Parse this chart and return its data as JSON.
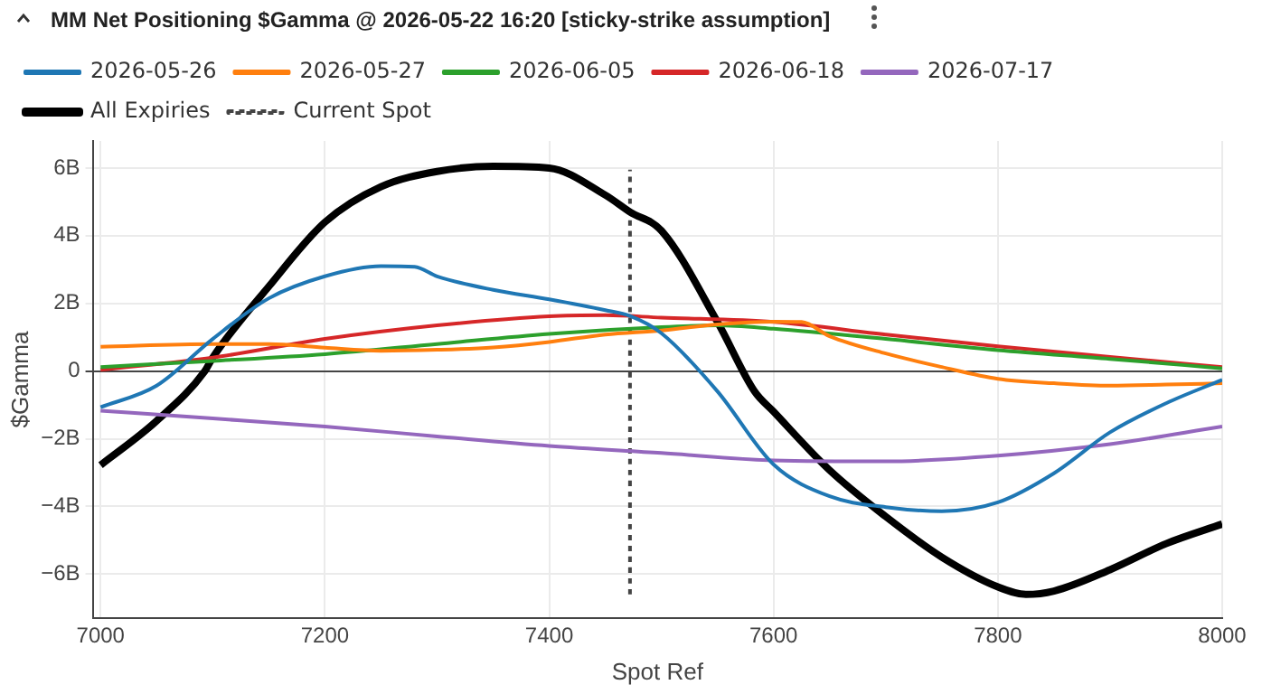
{
  "chart_data": {
    "type": "line",
    "title": "MM Net Positioning $Gamma @ 2026-05-22 16:20 [sticky-strike assumption]",
    "xlabel": "Spot Ref",
    "ylabel": "$Gamma",
    "xlim": [
      6993,
      8000
    ],
    "xticks": [
      7000,
      7200,
      7400,
      7600,
      7800,
      8000
    ],
    "ylim": [
      -7.3,
      6.8
    ],
    "yticks": [
      {
        "value": -6,
        "label": "−6B"
      },
      {
        "value": -4,
        "label": "−4B"
      },
      {
        "value": -2,
        "label": "−2B"
      },
      0,
      {
        "value": 2,
        "label": "2B"
      },
      {
        "value": 4,
        "label": "4B"
      },
      {
        "value": 6,
        "label": "6B"
      }
    ],
    "grid": true,
    "legend": "top",
    "marker": "none",
    "line_style": "solid",
    "series": [
      {
        "name": "2026-05-26",
        "color": "#1f77b4",
        "x": [
          7000,
          7050,
          7100,
          7150,
          7200,
          7250,
          7280,
          7300,
          7350,
          7400,
          7450,
          7472,
          7500,
          7550,
          7600,
          7650,
          7700,
          7750,
          7800,
          7850,
          7900,
          7950,
          8000
        ],
        "values": [
          -1.07,
          -0.43,
          0.95,
          2.15,
          2.8,
          3.1,
          3.08,
          2.8,
          2.4,
          2.12,
          1.8,
          1.63,
          1.12,
          -0.6,
          -2.76,
          -3.7,
          -4.02,
          -4.14,
          -3.88,
          -3.02,
          -1.81,
          -0.95,
          -0.26
        ]
      },
      {
        "name": "2026-05-27",
        "color": "#ff7f0e",
        "x": [
          7000,
          7100,
          7150,
          7200,
          7250,
          7300,
          7350,
          7400,
          7450,
          7500,
          7550,
          7600,
          7625,
          7650,
          7700,
          7750,
          7800,
          7850,
          7900,
          7950,
          8000
        ],
        "values": [
          0.72,
          0.8,
          0.8,
          0.69,
          0.6,
          0.63,
          0.7,
          0.86,
          1.08,
          1.2,
          1.38,
          1.46,
          1.45,
          1.03,
          0.52,
          0.12,
          -0.23,
          -0.36,
          -0.43,
          -0.4,
          -0.36
        ]
      },
      {
        "name": "2026-06-05",
        "color": "#2ca02c",
        "x": [
          7000,
          7100,
          7200,
          7300,
          7400,
          7500,
          7550,
          7600,
          7700,
          7800,
          7900,
          8000
        ],
        "values": [
          0.12,
          0.3,
          0.5,
          0.8,
          1.1,
          1.3,
          1.35,
          1.25,
          0.95,
          0.62,
          0.36,
          0.08
        ]
      },
      {
        "name": "2026-06-18",
        "color": "#d62728",
        "x": [
          7000,
          7100,
          7200,
          7300,
          7400,
          7450,
          7500,
          7600,
          7700,
          7800,
          7900,
          8000
        ],
        "values": [
          0.04,
          0.4,
          0.95,
          1.35,
          1.62,
          1.65,
          1.58,
          1.45,
          1.08,
          0.73,
          0.42,
          0.12
        ]
      },
      {
        "name": "2026-07-17",
        "color": "#9467bd",
        "x": [
          7000,
          7100,
          7200,
          7300,
          7400,
          7500,
          7600,
          7700,
          7800,
          7900,
          8000
        ],
        "values": [
          -1.17,
          -1.4,
          -1.64,
          -1.93,
          -2.21,
          -2.42,
          -2.64,
          -2.67,
          -2.5,
          -2.16,
          -1.64
        ]
      },
      {
        "name": "All Expiries",
        "color": "#000000",
        "x": [
          7000,
          7050,
          7093,
          7100,
          7150,
          7200,
          7250,
          7300,
          7350,
          7400,
          7450,
          7472,
          7500,
          7550,
          7583,
          7600,
          7650,
          7700,
          7750,
          7800,
          7825,
          7850,
          7900,
          7950,
          8000
        ],
        "values": [
          -2.78,
          -1.47,
          0,
          0.4,
          2.5,
          4.4,
          5.45,
          5.9,
          6.05,
          6.0,
          5.2,
          4.7,
          4.15,
          1.45,
          -0.6,
          -1.2,
          -2.93,
          -4.3,
          -5.5,
          -6.38,
          -6.6,
          -6.5,
          -5.87,
          -5.1,
          -4.52
        ]
      },
      {
        "name": "Current Spot",
        "color": "#444444",
        "line_style": "dotted",
        "x": [
          7472,
          7472
        ],
        "values": [
          -6.6,
          5.95
        ]
      }
    ]
  }
}
